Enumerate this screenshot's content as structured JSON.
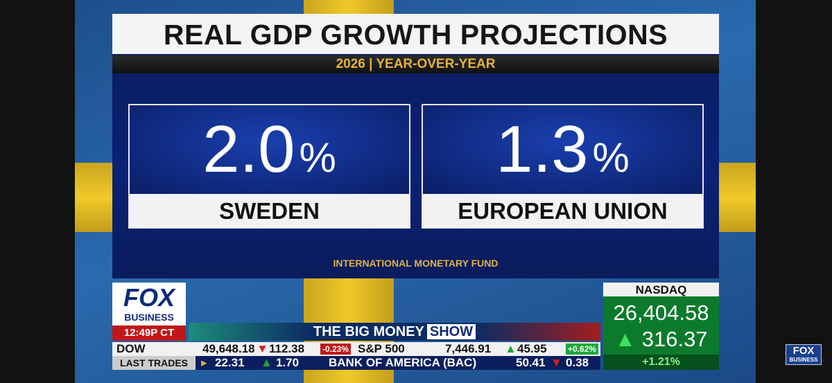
{
  "header": {
    "title": "REAL GDP GROWTH PROJECTIONS",
    "subtitle": "2026 | YEAR-OVER-YEAR"
  },
  "cards": [
    {
      "value": "2.0",
      "unit": "%",
      "label": "SWEDEN"
    },
    {
      "value": "1.3",
      "unit": "%",
      "label": "EUROPEAN UNION"
    }
  ],
  "source": "INTERNATIONAL MONETARY FUND",
  "network": {
    "brand": "FOX",
    "sub": "BUSINESS",
    "time": "12:49P CT"
  },
  "show": {
    "prefix": "THE BIG MONEY",
    "name": "SHOW"
  },
  "ticker": {
    "row1": [
      {
        "name": "DOW",
        "price": "49,648.18",
        "change": "112.38",
        "pct": "-0.23%"
      },
      {
        "name": "S&P 500",
        "price": "7,446.91",
        "change": "45.95",
        "pct": "+0.62%"
      }
    ],
    "row2": {
      "label": "LAST TRADES",
      "prev_price": "22.31",
      "prev_change": "1.70",
      "company": "BANK OF AMERICA (BAC)",
      "price": "50.41",
      "change": "0.38"
    }
  },
  "index": {
    "name": "NASDAQ",
    "value": "26,404.58",
    "change": "316.37",
    "pct": "+1.21%"
  },
  "corner_logo": {
    "brand": "FOX",
    "sub": "BUSINESS"
  }
}
